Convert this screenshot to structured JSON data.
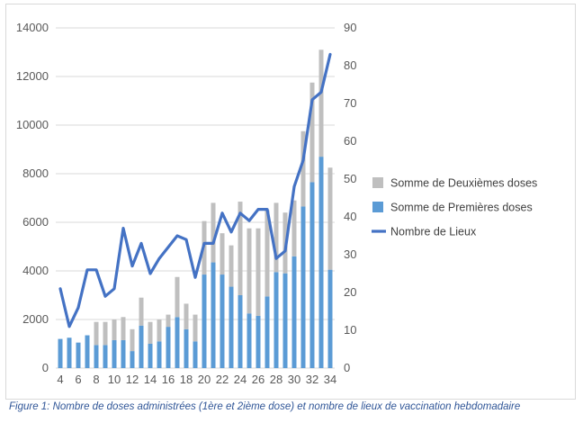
{
  "chart_data": {
    "type": "bar+line",
    "x": [
      4,
      5,
      6,
      7,
      8,
      9,
      10,
      11,
      12,
      13,
      14,
      15,
      16,
      17,
      18,
      19,
      20,
      21,
      22,
      23,
      24,
      25,
      26,
      27,
      28,
      29,
      30,
      31,
      32,
      33,
      34
    ],
    "x_tick_labels": [
      "4",
      "6",
      "8",
      "10",
      "12",
      "14",
      "16",
      "18",
      "20",
      "22",
      "24",
      "26",
      "28",
      "30",
      "32",
      "34"
    ],
    "series": [
      {
        "name": "Somme de Deuxièmes doses",
        "type": "stacked-bar",
        "axis": "left",
        "color": "#bfbfbf",
        "values": [
          0,
          0,
          0,
          0,
          950,
          950,
          850,
          950,
          900,
          1150,
          900,
          900,
          500,
          1650,
          1050,
          1100,
          2200,
          2450,
          1700,
          1700,
          3850,
          3500,
          3600,
          3550,
          2850,
          2500,
          2300,
          3100,
          4100,
          4400,
          4200
        ]
      },
      {
        "name": "Somme de Premières doses",
        "type": "stacked-bar",
        "axis": "left",
        "color": "#5b9bd5",
        "values": [
          1200,
          1250,
          1050,
          1350,
          950,
          950,
          1150,
          1150,
          700,
          1750,
          1000,
          1100,
          1700,
          2100,
          1600,
          1100,
          3850,
          4350,
          3850,
          3350,
          3000,
          2250,
          2150,
          2950,
          3950,
          3900,
          4600,
          6650,
          7650,
          8700,
          4050
        ]
      },
      {
        "name": "Nombre de Lieux",
        "type": "line",
        "axis": "right",
        "color": "#4472c4",
        "values": [
          21,
          11,
          16,
          26,
          26,
          19,
          21,
          37,
          27,
          33,
          25,
          29,
          32,
          35,
          34,
          24,
          33,
          33,
          41,
          36,
          41,
          39,
          42,
          42,
          29,
          31,
          48,
          55,
          71,
          73,
          83
        ]
      }
    ],
    "y_left": {
      "lim": [
        0,
        14000
      ],
      "ticks": [
        "0",
        "2000",
        "4000",
        "6000",
        "8000",
        "10000",
        "12000",
        "14000"
      ]
    },
    "y_right": {
      "lim": [
        0,
        90
      ],
      "ticks": [
        "0",
        "10",
        "20",
        "30",
        "40",
        "50",
        "60",
        "70",
        "80",
        "90"
      ]
    },
    "legend_position": "right",
    "grid": true
  },
  "caption": "Figure 1: Nombre de doses administrées (1ère et 2ième dose) et nombre de lieux de vaccination hebdomadaire"
}
